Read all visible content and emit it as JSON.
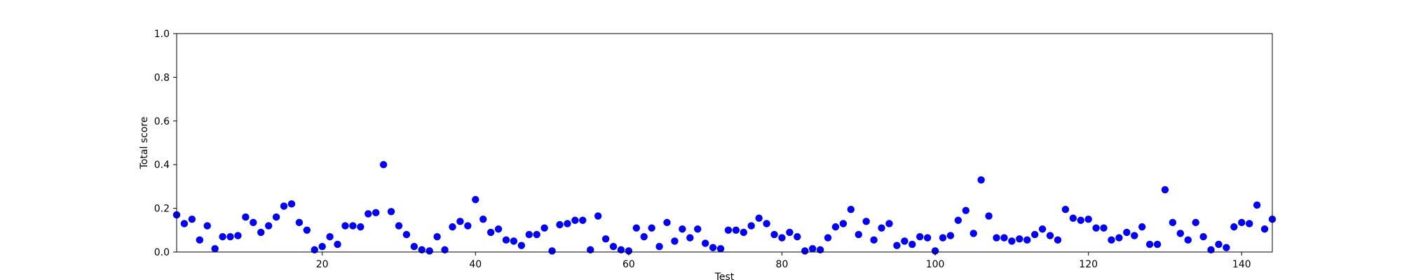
{
  "chart_data": {
    "type": "scatter",
    "xlabel": "Test",
    "ylabel": "Total score",
    "xlim": [
      1,
      144
    ],
    "ylim": [
      0,
      1.0
    ],
    "xticks": [
      20,
      40,
      60,
      80,
      100,
      120,
      140
    ],
    "yticks": [
      0.0,
      0.2,
      0.4,
      0.6,
      0.8,
      1.0
    ],
    "ytick_labels": [
      "0.0",
      "0.2",
      "0.4",
      "0.6",
      "0.8",
      "1.0"
    ],
    "grid": false,
    "marker_color": "#0000ff",
    "series": [
      {
        "x": [
          1,
          2,
          3,
          4,
          5,
          6,
          7,
          8,
          9,
          10,
          11,
          12,
          13,
          14,
          15,
          16,
          17,
          18,
          19,
          20,
          21,
          22,
          23,
          24,
          25,
          26,
          27,
          28,
          29,
          30,
          31,
          32,
          33,
          34,
          35,
          36,
          37,
          38,
          39,
          40,
          41,
          42,
          43,
          44,
          45,
          46,
          47,
          48,
          49,
          50,
          51,
          52,
          53,
          54,
          55,
          56,
          57,
          58,
          59,
          60,
          61,
          62,
          63,
          64,
          65,
          66,
          67,
          68,
          69,
          70,
          71,
          72,
          73,
          74,
          75,
          76,
          77,
          78,
          79,
          80,
          81,
          82,
          83,
          84,
          85,
          86,
          87,
          88,
          89,
          90,
          91,
          92,
          93,
          94,
          95,
          96,
          97,
          98,
          99,
          100,
          101,
          102,
          103,
          104,
          105,
          106,
          107,
          108,
          109,
          110,
          111,
          112,
          113,
          114,
          115,
          116,
          117,
          118,
          119,
          120,
          121,
          122,
          123,
          124,
          125,
          126,
          127,
          128,
          129,
          130,
          131,
          132,
          133,
          134,
          135,
          136,
          137,
          138,
          139,
          140,
          141,
          142,
          143,
          144
        ],
        "y": [
          0.17,
          0.13,
          0.15,
          0.055,
          0.12,
          0.015,
          0.07,
          0.07,
          0.075,
          0.16,
          0.135,
          0.09,
          0.12,
          0.16,
          0.21,
          0.22,
          0.135,
          0.1,
          0.01,
          0.025,
          0.07,
          0.035,
          0.12,
          0.12,
          0.115,
          0.175,
          0.18,
          0.4,
          0.185,
          0.12,
          0.08,
          0.025,
          0.01,
          0.005,
          0.07,
          0.01,
          0.115,
          0.14,
          0.12,
          0.24,
          0.15,
          0.09,
          0.105,
          0.055,
          0.05,
          0.03,
          0.08,
          0.08,
          0.11,
          0.005,
          0.125,
          0.13,
          0.145,
          0.145,
          0.01,
          0.165,
          0.06,
          0.025,
          0.01,
          0.005,
          0.11,
          0.07,
          0.11,
          0.025,
          0.135,
          0.05,
          0.105,
          0.065,
          0.105,
          0.04,
          0.02,
          0.015,
          0.1,
          0.1,
          0.09,
          0.12,
          0.155,
          0.13,
          0.08,
          0.065,
          0.09,
          0.07,
          0.005,
          0.015,
          0.01,
          0.065,
          0.115,
          0.13,
          0.195,
          0.08,
          0.14,
          0.055,
          0.11,
          0.13,
          0.03,
          0.05,
          0.035,
          0.07,
          0.065,
          0.005,
          0.065,
          0.075,
          0.145,
          0.19,
          0.085,
          0.33,
          0.165,
          0.065,
          0.065,
          0.05,
          0.06,
          0.055,
          0.08,
          0.105,
          0.075,
          0.055,
          0.195,
          0.155,
          0.145,
          0.15,
          0.11,
          0.11,
          0.055,
          0.065,
          0.09,
          0.075,
          0.115,
          0.035,
          0.035,
          0.285,
          0.135,
          0.085,
          0.055,
          0.135,
          0.07,
          0.01,
          0.035,
          0.02,
          0.115,
          0.135,
          0.13,
          0.215,
          0.105,
          0.15
        ]
      }
    ]
  }
}
